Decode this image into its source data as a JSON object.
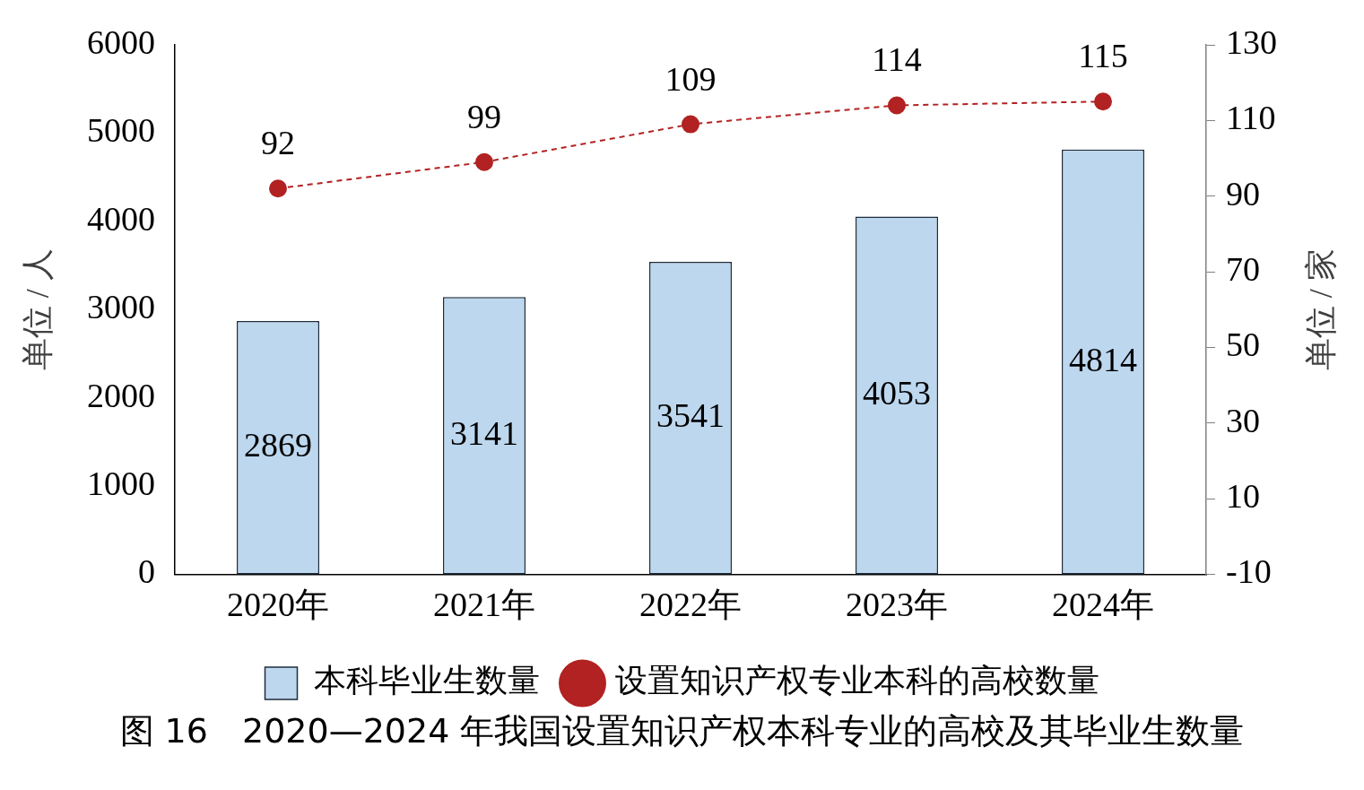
{
  "chart_data": {
    "type": "bar",
    "title": "图 16　2020—2024 年我国设置知识产权本科专业的高校及其毕业生数量",
    "categories": [
      "2020年",
      "2021年",
      "2022年",
      "2023年",
      "2024年"
    ],
    "series": [
      {
        "name": "本科毕业生数量",
        "color": "#bdd7ee",
        "values": [
          2869,
          3141,
          3541,
          4053,
          4814
        ]
      },
      {
        "name": "设置知识产权专业本科的高校数量",
        "type": "line",
        "axis": "y2",
        "color": "#b22222",
        "values": [
          92,
          99,
          109,
          114,
          115
        ],
        "line_style": "dashed",
        "marker": "circle"
      }
    ],
    "ylabel": "单位 / 人",
    "y2label": "单位 / 家",
    "ylim": [
      0,
      6000
    ],
    "yticks": [
      0,
      1000,
      2000,
      3000,
      4000,
      5000,
      6000
    ],
    "y2lim": [
      -10,
      130
    ],
    "y2ticks": [
      -10,
      10,
      30,
      50,
      70,
      90,
      110,
      130
    ],
    "data_labels": true,
    "grid": false,
    "legend": "bottom"
  }
}
